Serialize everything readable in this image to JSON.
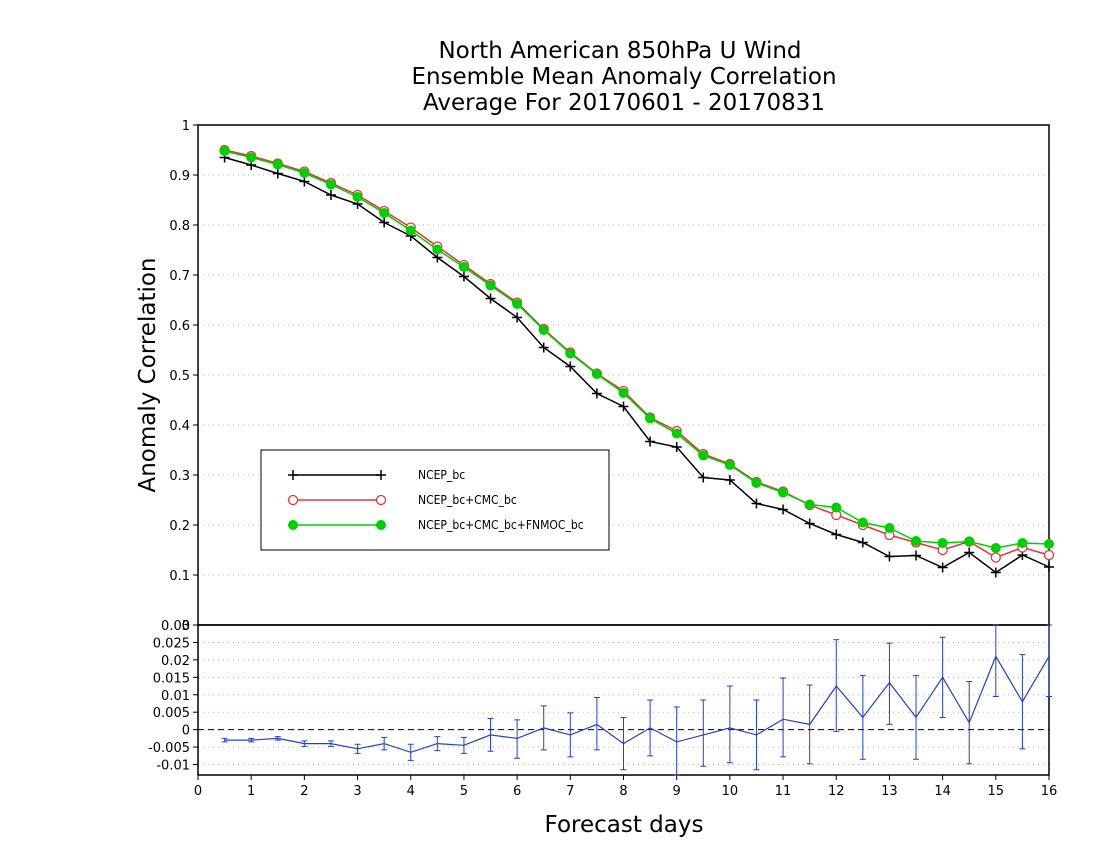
{
  "chart_data": [
    {
      "type": "line",
      "title_lines": [
        "North American 850hPa U Wind",
        "Ensemble Mean Anomaly Correlation",
        "Average For 20170601 - 20170831"
      ],
      "xlabel": "Forecast days",
      "ylabel": "Anomaly Correlation",
      "xlim": [
        0,
        16
      ],
      "ylim": [
        0,
        1
      ],
      "yticks": [
        "1",
        "0.9",
        "0.8",
        "0.7",
        "0.6",
        "0.5",
        "0.4",
        "0.3",
        "0.2",
        "0.1",
        "0"
      ],
      "grid": "horizontal dotted",
      "legend_position": "center-left",
      "x": [
        0.5,
        1,
        1.5,
        2,
        2.5,
        3,
        3.5,
        4,
        4.5,
        5,
        5.5,
        6,
        6.5,
        7,
        7.5,
        8,
        8.5,
        9,
        9.5,
        10,
        10.5,
        11,
        11.5,
        12,
        12.5,
        13,
        13.5,
        14,
        14.5,
        15,
        15.5,
        16
      ],
      "series": [
        {
          "name": "NCEP_bc",
          "color": "#000000",
          "marker": "plus",
          "values": [
            0.935,
            0.92,
            0.903,
            0.887,
            0.86,
            0.842,
            0.805,
            0.778,
            0.735,
            0.697,
            0.653,
            0.615,
            0.555,
            0.517,
            0.463,
            0.437,
            0.367,
            0.356,
            0.295,
            0.29,
            0.243,
            0.231,
            0.203,
            0.181,
            0.165,
            0.137,
            0.139,
            0.115,
            0.145,
            0.105,
            0.14,
            0.116
          ]
        },
        {
          "name": "NCEP_bc+CMC_bc",
          "color": "#e03838",
          "marker": "open-circle",
          "values": [
            0.95,
            0.938,
            0.923,
            0.907,
            0.884,
            0.86,
            0.828,
            0.795,
            0.757,
            0.72,
            0.682,
            0.645,
            0.592,
            0.545,
            0.503,
            0.468,
            0.415,
            0.388,
            0.342,
            0.322,
            0.286,
            0.267,
            0.24,
            0.22,
            0.2,
            0.18,
            0.165,
            0.15,
            0.167,
            0.135,
            0.155,
            0.14
          ]
        },
        {
          "name": "NCEP_bc+CMC_bc+FNMOC_bc",
          "color": "#00d000",
          "marker": "filled-circle",
          "values": [
            0.948,
            0.935,
            0.921,
            0.904,
            0.881,
            0.856,
            0.824,
            0.789,
            0.751,
            0.716,
            0.679,
            0.642,
            0.59,
            0.543,
            0.502,
            0.464,
            0.413,
            0.383,
            0.339,
            0.32,
            0.284,
            0.265,
            0.241,
            0.235,
            0.205,
            0.194,
            0.168,
            0.164,
            0.167,
            0.154,
            0.164,
            0.162
          ]
        }
      ]
    },
    {
      "type": "line",
      "xlabel": "Forecast days",
      "xlim": [
        0,
        16
      ],
      "ylim": [
        -0.013,
        0.03
      ],
      "xticks": [
        "0",
        "1",
        "2",
        "3",
        "4",
        "5",
        "6",
        "7",
        "8",
        "9",
        "10",
        "11",
        "12",
        "13",
        "14",
        "15",
        "16"
      ],
      "yticks": [
        "0.03",
        "0.025",
        "0.02",
        "0.015",
        "0.01",
        "0.005",
        "0",
        "-0.005",
        "-0.01"
      ],
      "top_label": "0",
      "grid": "horizontal dotted",
      "zero_line": "dashed",
      "x": [
        0.5,
        1,
        1.5,
        2,
        2.5,
        3,
        3.5,
        4,
        4.5,
        5,
        5.5,
        6,
        6.5,
        7,
        7.5,
        8,
        8.5,
        9,
        9.5,
        10,
        10.5,
        11,
        11.5,
        12,
        12.5,
        13,
        13.5,
        14,
        14.5,
        15,
        15.5,
        16
      ],
      "series": [
        {
          "name": "",
          "color": "#2040d8",
          "marker": "error-bar",
          "values": [
            -0.003,
            -0.003,
            -0.0025,
            -0.004,
            -0.004,
            -0.0055,
            -0.004,
            -0.0065,
            -0.004,
            -0.0045,
            -0.0015,
            -0.0025,
            0.0005,
            -0.0015,
            0.0015,
            -0.004,
            0.0005,
            -0.0035,
            -0.0015,
            0.0005,
            -0.0015,
            0.003,
            0.0015,
            0.0125,
            0.0035,
            0.0135,
            0.0035,
            0.015,
            0.002,
            0.021,
            0.008,
            0.021
          ],
          "error_low": [
            -0.0035,
            -0.0035,
            -0.003,
            -0.0048,
            -0.0048,
            -0.0068,
            -0.0058,
            -0.0088,
            -0.006,
            -0.0068,
            -0.0062,
            -0.0082,
            -0.0058,
            -0.0078,
            -0.0058,
            -0.0115,
            -0.0075,
            -0.0135,
            -0.0105,
            -0.0095,
            -0.0115,
            -0.0078,
            -0.0098,
            -0.0005,
            -0.0085,
            0.0015,
            -0.0085,
            0.0035,
            -0.0098,
            0.0095,
            -0.0055,
            0.0095
          ],
          "error_high": [
            -0.0025,
            -0.0025,
            -0.002,
            -0.0032,
            -0.0032,
            -0.0042,
            -0.0022,
            -0.0042,
            -0.002,
            -0.0022,
            0.0032,
            0.0028,
            0.0068,
            0.0048,
            0.0092,
            0.0035,
            0.0085,
            0.0065,
            0.0085,
            0.0125,
            0.0085,
            0.0148,
            0.0128,
            0.0258,
            0.0155,
            0.0248,
            0.0155,
            0.0265,
            0.0138,
            0.0315,
            0.0215,
            0.0325
          ]
        }
      ]
    }
  ]
}
